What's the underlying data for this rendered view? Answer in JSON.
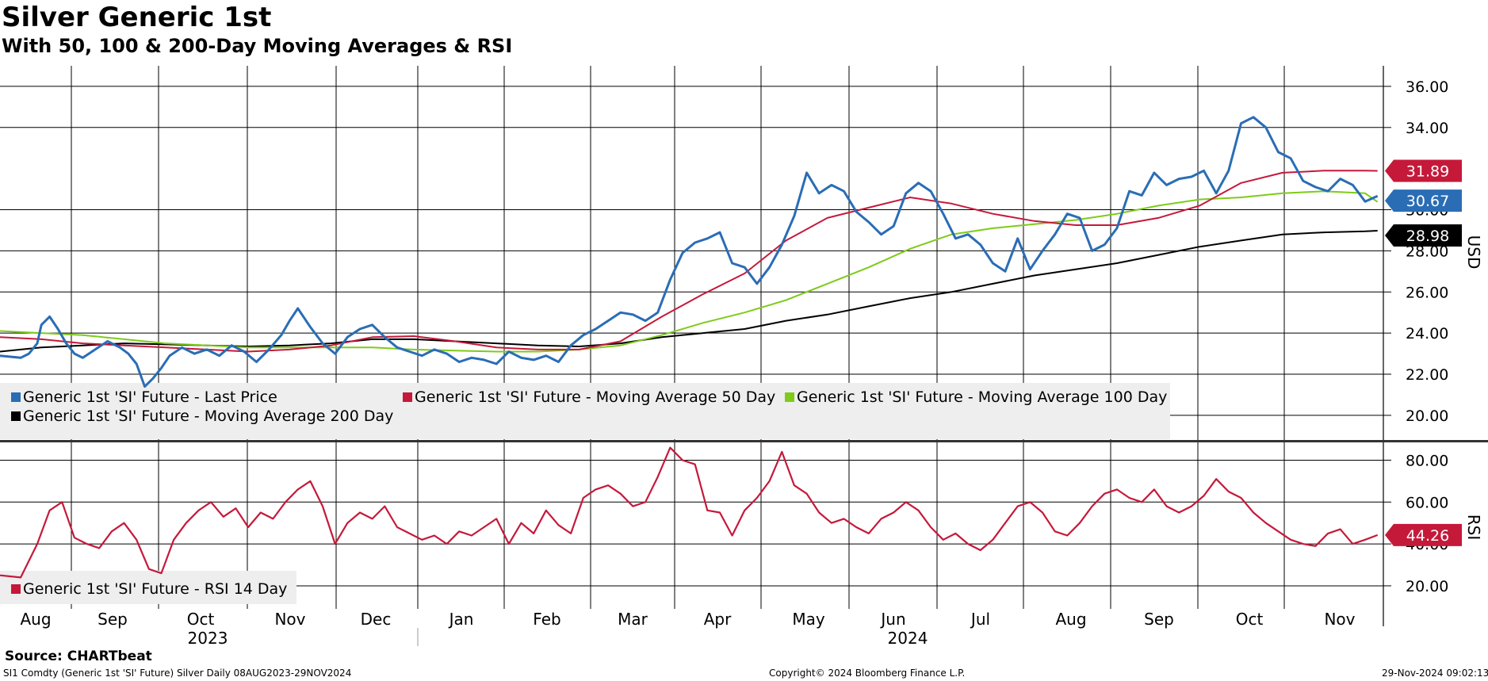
{
  "header": {
    "title": "Silver Generic 1st",
    "subtitle": "With 50, 100 & 200-Day Moving Averages & RSI"
  },
  "footer": {
    "source": "Source: CHARTbeat",
    "ticker": "SI1 Comdty (Generic 1st 'SI' Future) Silver  Daily 08AUG2023-29NOV2024",
    "copyright": "Copyright© 2024 Bloomberg Finance L.P.",
    "timestamp": "29-Nov-2024 09:02:13"
  },
  "colors": {
    "price": "#2a6db5",
    "ma50": "#c5193a",
    "ma100": "#7ecb1a",
    "ma200": "#000000",
    "rsi": "#c5193a",
    "grid": "#000000",
    "legend_bg": "#eeeeee"
  },
  "chart_data": [
    {
      "type": "line",
      "title": "Silver Generic 1st",
      "subtitle": "With 50, 100 & 200-Day Moving Averages & RSI",
      "ylabel": "USD",
      "ylim": [
        18.8,
        37.0
      ],
      "yticks": [
        "36.00",
        "34.00",
        "30.00",
        "28.00",
        "26.00",
        "24.00",
        "22.00",
        "20.00"
      ],
      "ytick_values": [
        36,
        34,
        30,
        28,
        26,
        24,
        22,
        20
      ],
      "grid": true,
      "legend": "bottom-left",
      "x_months": [
        "Aug",
        "Sep",
        "Oct",
        "Nov",
        "Dec",
        "Jan",
        "Feb",
        "Mar",
        "Apr",
        "May",
        "Jun",
        "Jul",
        "Aug",
        "Sep",
        "Oct",
        "Nov"
      ],
      "x_years": [
        "2023",
        "2024"
      ],
      "x_range": [
        0,
        16.72
      ],
      "series": [
        {
          "name": "Generic 1st 'SI' Future - Last Price",
          "color": "#2a6db5",
          "last_value": "30.67",
          "x": [
            0.0,
            0.25,
            0.35,
            0.45,
            0.5,
            0.6,
            0.7,
            0.8,
            0.9,
            1.0,
            1.15,
            1.3,
            1.45,
            1.55,
            1.65,
            1.75,
            1.85,
            1.95,
            2.05,
            2.2,
            2.35,
            2.5,
            2.65,
            2.8,
            2.95,
            3.1,
            3.25,
            3.4,
            3.5,
            3.6,
            3.75,
            3.9,
            4.05,
            4.2,
            4.35,
            4.5,
            4.65,
            4.8,
            4.95,
            5.1,
            5.25,
            5.4,
            5.55,
            5.7,
            5.85,
            6.0,
            6.15,
            6.3,
            6.45,
            6.6,
            6.75,
            6.9,
            7.05,
            7.2,
            7.35,
            7.5,
            7.65,
            7.8,
            7.95,
            8.1,
            8.25,
            8.4,
            8.55,
            8.7,
            8.85,
            9.0,
            9.15,
            9.3,
            9.45,
            9.6,
            9.75,
            9.9,
            10.05,
            10.2,
            10.35,
            10.5,
            10.65,
            10.8,
            10.95,
            11.1,
            11.25,
            11.4,
            11.55,
            11.7,
            11.85,
            12.0,
            12.15,
            12.3,
            12.45,
            12.6,
            12.75,
            12.9,
            13.05,
            13.2,
            13.35,
            13.5,
            13.65,
            13.8,
            13.95,
            14.1,
            14.25,
            14.4,
            14.55,
            14.7,
            14.85,
            15.0,
            15.15,
            15.3,
            15.45,
            15.6,
            15.75,
            15.9,
            16.05,
            16.2,
            16.35,
            16.5,
            16.65
          ],
          "values": [
            22.9,
            22.8,
            23.0,
            23.5,
            24.4,
            24.8,
            24.2,
            23.5,
            23.0,
            22.8,
            23.2,
            23.6,
            23.3,
            23.0,
            22.5,
            21.4,
            21.8,
            22.3,
            22.9,
            23.3,
            23.0,
            23.2,
            22.9,
            23.4,
            23.1,
            22.6,
            23.2,
            23.9,
            24.6,
            25.2,
            24.3,
            23.5,
            23.0,
            23.8,
            24.2,
            24.4,
            23.8,
            23.3,
            23.1,
            22.9,
            23.2,
            23.0,
            22.6,
            22.8,
            22.7,
            22.5,
            23.1,
            22.8,
            22.7,
            22.9,
            22.6,
            23.4,
            23.9,
            24.2,
            24.6,
            25.0,
            24.9,
            24.6,
            25.0,
            26.6,
            27.9,
            28.4,
            28.6,
            28.9,
            27.4,
            27.2,
            26.4,
            27.2,
            28.3,
            29.7,
            31.8,
            30.8,
            31.2,
            30.9,
            29.9,
            29.4,
            28.8,
            29.2,
            30.8,
            31.3,
            30.9,
            29.8,
            28.6,
            28.8,
            28.3,
            27.4,
            27.0,
            28.6,
            27.1,
            28.0,
            28.8,
            29.8,
            29.6,
            28.0,
            28.3,
            29.1,
            30.9,
            30.7,
            31.8,
            31.2,
            31.5,
            31.6,
            31.9,
            30.8,
            31.9,
            34.2,
            34.5,
            34.0,
            32.8,
            32.5,
            31.4,
            31.1,
            30.9,
            31.5,
            31.2,
            30.4,
            30.67
          ]
        },
        {
          "name": "Generic 1st 'SI' Future - Moving Average 50 Day",
          "color": "#c5193a",
          "last_value": "31.89",
          "x": [
            0.0,
            0.5,
            1.0,
            1.5,
            2.0,
            2.5,
            3.0,
            3.5,
            4.0,
            4.5,
            5.0,
            5.5,
            6.0,
            6.5,
            7.0,
            7.5,
            8.0,
            8.5,
            9.0,
            9.5,
            10.0,
            10.5,
            11.0,
            11.5,
            12.0,
            12.5,
            13.0,
            13.5,
            14.0,
            14.5,
            15.0,
            15.5,
            16.0,
            16.5,
            16.65
          ],
          "values": [
            23.8,
            23.7,
            23.5,
            23.4,
            23.3,
            23.2,
            23.1,
            23.2,
            23.4,
            23.8,
            23.85,
            23.6,
            23.3,
            23.2,
            23.2,
            23.6,
            24.8,
            25.9,
            26.9,
            28.5,
            29.6,
            30.1,
            30.6,
            30.3,
            29.8,
            29.45,
            29.25,
            29.25,
            29.6,
            30.2,
            31.3,
            31.8,
            31.9,
            31.9,
            31.89
          ]
        },
        {
          "name": "Generic 1st 'SI' Future - Moving Average 100 Day",
          "color": "#7ecb1a",
          "last_value": "30.38",
          "x": [
            0.0,
            0.5,
            1.0,
            1.5,
            2.0,
            2.5,
            3.0,
            3.5,
            4.0,
            4.5,
            5.0,
            5.5,
            6.0,
            6.5,
            7.0,
            7.5,
            8.0,
            8.5,
            9.0,
            9.5,
            10.0,
            10.5,
            11.0,
            11.5,
            12.0,
            12.5,
            13.0,
            13.5,
            14.0,
            14.5,
            15.0,
            15.5,
            16.0,
            16.5,
            16.65
          ],
          "values": [
            24.1,
            24.0,
            23.9,
            23.7,
            23.5,
            23.4,
            23.3,
            23.3,
            23.3,
            23.3,
            23.2,
            23.15,
            23.1,
            23.1,
            23.2,
            23.4,
            23.9,
            24.5,
            25.0,
            25.6,
            26.4,
            27.2,
            28.1,
            28.8,
            29.1,
            29.3,
            29.5,
            29.8,
            30.2,
            30.5,
            30.6,
            30.8,
            30.9,
            30.8,
            30.38
          ]
        },
        {
          "name": "Generic 1st 'SI' Future - Moving Average 200 Day",
          "color": "#000000",
          "last_value": "28.98",
          "x": [
            0.0,
            0.5,
            1.0,
            1.5,
            2.0,
            2.5,
            3.0,
            3.5,
            4.0,
            4.5,
            5.0,
            5.5,
            6.0,
            6.5,
            7.0,
            7.5,
            8.0,
            8.5,
            9.0,
            9.5,
            10.0,
            10.5,
            11.0,
            11.5,
            12.0,
            12.5,
            13.0,
            13.5,
            14.0,
            14.5,
            15.0,
            15.5,
            16.0,
            16.5,
            16.65
          ],
          "values": [
            23.1,
            23.3,
            23.4,
            23.5,
            23.45,
            23.4,
            23.35,
            23.4,
            23.5,
            23.7,
            23.7,
            23.6,
            23.5,
            23.4,
            23.35,
            23.5,
            23.8,
            24.0,
            24.2,
            24.6,
            24.9,
            25.3,
            25.7,
            26.0,
            26.4,
            26.8,
            27.1,
            27.4,
            27.8,
            28.2,
            28.5,
            28.8,
            28.9,
            28.95,
            28.98
          ]
        }
      ]
    },
    {
      "type": "line",
      "ylabel": "RSI",
      "ylim": [
        9,
        88.5
      ],
      "yticks": [
        "80.00",
        "60.00",
        "40.00",
        "20.00"
      ],
      "ytick_values": [
        80,
        60,
        40,
        20
      ],
      "grid": true,
      "legend": "bottom-left",
      "series": [
        {
          "name": "Generic 1st 'SI' Future - RSI 14 Day",
          "color": "#c5193a",
          "last_value": "44.26",
          "x": [
            0.0,
            0.25,
            0.45,
            0.6,
            0.75,
            0.9,
            1.05,
            1.2,
            1.35,
            1.5,
            1.65,
            1.8,
            1.95,
            2.1,
            2.25,
            2.4,
            2.55,
            2.7,
            2.85,
            3.0,
            3.15,
            3.3,
            3.45,
            3.6,
            3.75,
            3.9,
            4.05,
            4.2,
            4.35,
            4.5,
            4.65,
            4.8,
            4.95,
            5.1,
            5.25,
            5.4,
            5.55,
            5.7,
            5.85,
            6.0,
            6.15,
            6.3,
            6.45,
            6.6,
            6.75,
            6.9,
            7.05,
            7.2,
            7.35,
            7.5,
            7.65,
            7.8,
            7.95,
            8.1,
            8.25,
            8.4,
            8.55,
            8.7,
            8.85,
            9.0,
            9.15,
            9.3,
            9.45,
            9.6,
            9.75,
            9.9,
            10.05,
            10.2,
            10.35,
            10.5,
            10.65,
            10.8,
            10.95,
            11.1,
            11.25,
            11.4,
            11.55,
            11.7,
            11.85,
            12.0,
            12.15,
            12.3,
            12.45,
            12.6,
            12.75,
            12.9,
            13.05,
            13.2,
            13.35,
            13.5,
            13.65,
            13.8,
            13.95,
            14.1,
            14.25,
            14.4,
            14.55,
            14.7,
            14.85,
            15.0,
            15.15,
            15.3,
            15.45,
            15.6,
            15.75,
            15.9,
            16.05,
            16.2,
            16.35,
            16.5,
            16.65
          ],
          "values": [
            25,
            24,
            40,
            56,
            60,
            43,
            40,
            38,
            46,
            50,
            42,
            28,
            26,
            42,
            50,
            56,
            60,
            53,
            57,
            48,
            55,
            52,
            60,
            66,
            70,
            58,
            40,
            50,
            55,
            52,
            58,
            48,
            45,
            42,
            44,
            40,
            46,
            44,
            48,
            52,
            40,
            50,
            45,
            56,
            49,
            45,
            62,
            66,
            68,
            64,
            58,
            60,
            72,
            86,
            80,
            78,
            56,
            55,
            44,
            56,
            62,
            70,
            84,
            68,
            64,
            55,
            50,
            52,
            48,
            45,
            52,
            55,
            60,
            56,
            48,
            42,
            45,
            40,
            37,
            42,
            50,
            58,
            60,
            55,
            46,
            44,
            50,
            58,
            64,
            66,
            62,
            60,
            66,
            58,
            55,
            58,
            63,
            71,
            65,
            62,
            55,
            50,
            46,
            42,
            40,
            39,
            45,
            47,
            40,
            42,
            44.26
          ]
        }
      ]
    }
  ]
}
